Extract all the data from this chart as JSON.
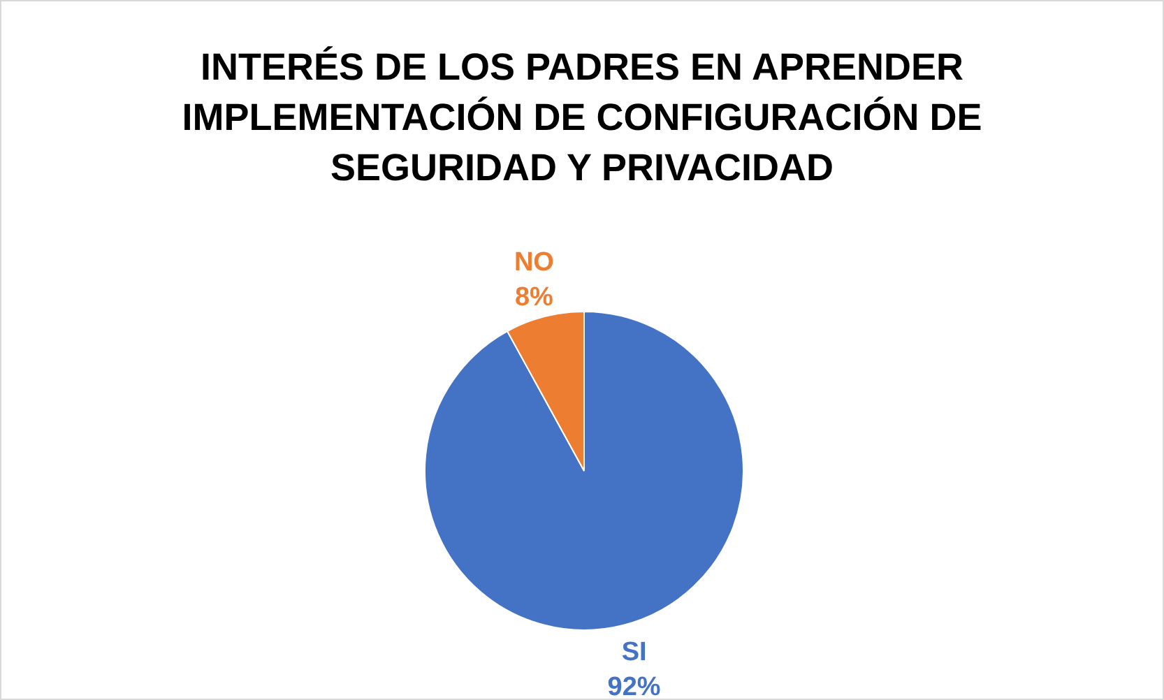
{
  "chart_data": {
    "type": "pie",
    "title": "INTERÉS DE LOS PADRES EN APRENDER IMPLEMENTACIÓN DE CONFIGURACIÓN DE SEGURIDAD Y PRIVACIDAD",
    "categories": [
      "SI",
      "NO"
    ],
    "values": [
      92,
      8
    ],
    "value_labels": [
      "92%",
      "8%"
    ],
    "colors": [
      "#4472c4",
      "#ed7d31"
    ],
    "legend": false
  }
}
